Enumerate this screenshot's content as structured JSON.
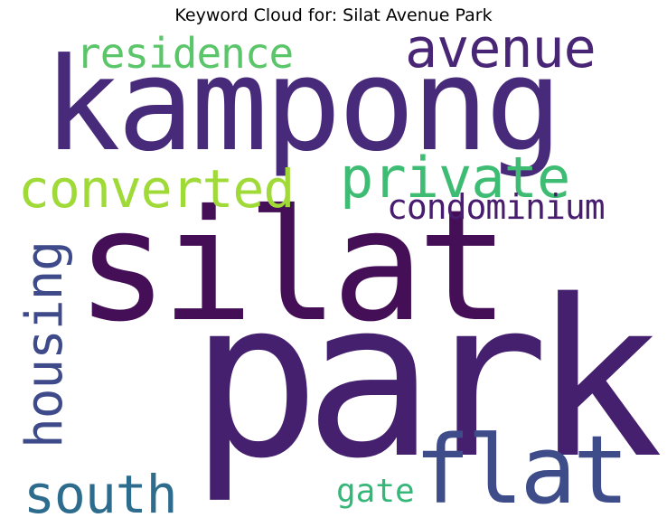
{
  "title": "Keyword Cloud for: Silat Avenue Park",
  "words": [
    {
      "id": "kampong",
      "text": "kampong",
      "color": "#472a7a",
      "orientation": "horizontal"
    },
    {
      "id": "silat",
      "text": "silat",
      "color": "#440f56",
      "orientation": "horizontal"
    },
    {
      "id": "park",
      "text": "park",
      "color": "#45206f",
      "orientation": "horizontal"
    },
    {
      "id": "residence",
      "text": "residence",
      "color": "#5bc569",
      "orientation": "horizontal"
    },
    {
      "id": "avenue",
      "text": "avenue",
      "color": "#482575",
      "orientation": "horizontal"
    },
    {
      "id": "private",
      "text": "private",
      "color": "#3fbc73",
      "orientation": "horizontal"
    },
    {
      "id": "converted",
      "text": "converted",
      "color": "#a0da39",
      "orientation": "horizontal"
    },
    {
      "id": "condominium",
      "text": "condominium",
      "color": "#481c6e",
      "orientation": "horizontal"
    },
    {
      "id": "housing",
      "text": "housing",
      "color": "#3e4a89",
      "orientation": "vertical"
    },
    {
      "id": "south",
      "text": "south",
      "color": "#2e6c8e",
      "orientation": "horizontal"
    },
    {
      "id": "gate",
      "text": "gate",
      "color": "#35b779",
      "orientation": "horizontal"
    },
    {
      "id": "flat",
      "text": "flat",
      "color": "#3e4c8a",
      "orientation": "horizontal"
    }
  ]
}
